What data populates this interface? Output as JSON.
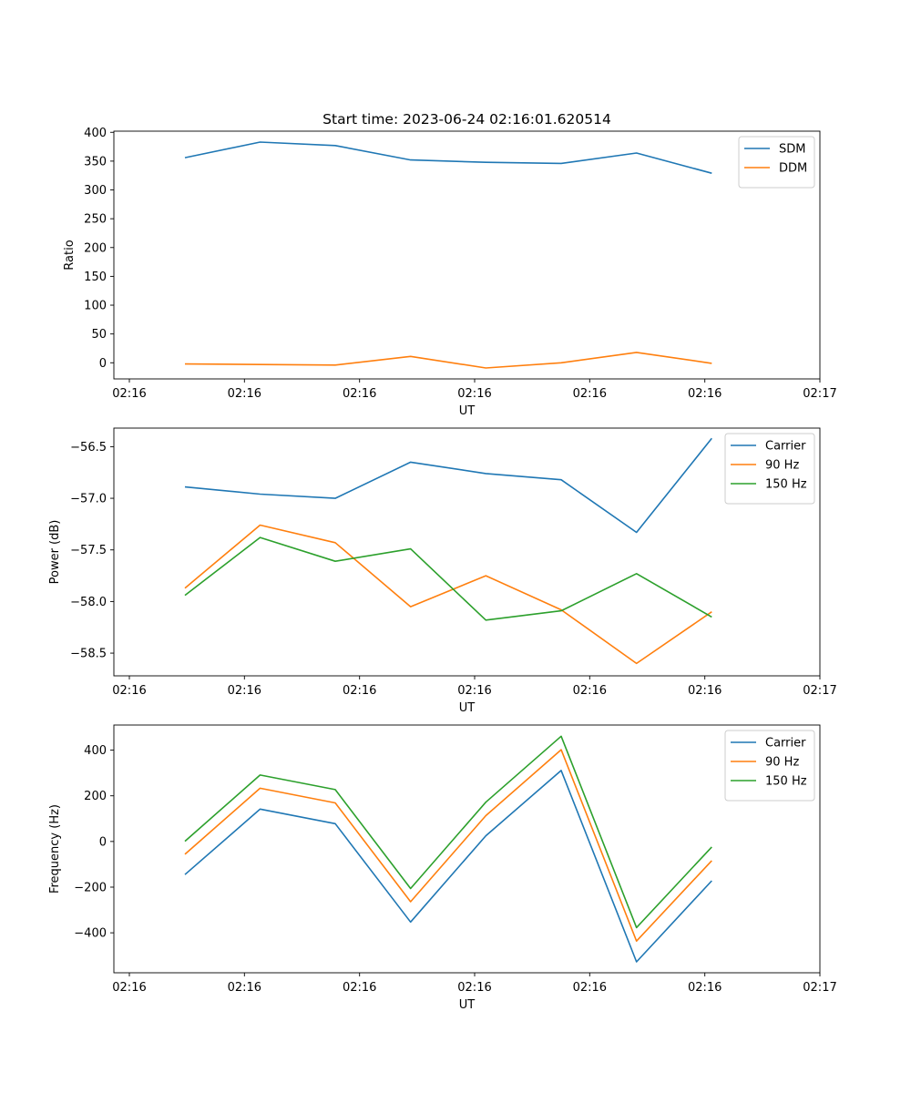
{
  "chart_data": [
    {
      "type": "line",
      "title": "Start time: 2023-06-24 02:16:01.620514",
      "xlabel": "UT",
      "ylabel": "Ratio",
      "x_tick_labels": [
        "02:16",
        "02:16",
        "02:16",
        "02:16",
        "02:16",
        "02:16",
        "02:17"
      ],
      "ylim": [
        -28,
        402
      ],
      "yticks": [
        0,
        50,
        100,
        150,
        200,
        250,
        300,
        350,
        400
      ],
      "legend_position": "top-right",
      "series": [
        {
          "name": "SDM",
          "color": "#1f77b4",
          "values": [
            356,
            383,
            377,
            352,
            348,
            346,
            364,
            329
          ]
        },
        {
          "name": "DDM",
          "color": "#ff7f0e",
          "values": [
            -2,
            -3,
            -4,
            11,
            -9,
            0,
            18,
            -1
          ]
        }
      ]
    },
    {
      "type": "line",
      "title": "",
      "xlabel": "UT",
      "ylabel": "Power (dB)",
      "x_tick_labels": [
        "02:16",
        "02:16",
        "02:16",
        "02:16",
        "02:16",
        "02:16",
        "02:17"
      ],
      "ylim": [
        -58.72,
        -56.32
      ],
      "yticks": [
        -58.5,
        -58.0,
        -57.5,
        -57.0,
        -56.5
      ],
      "ytick_labels": [
        "−58.5",
        "−58.0",
        "−57.5",
        "−57.0",
        "−56.5"
      ],
      "legend_position": "top-right",
      "series": [
        {
          "name": "Carrier",
          "color": "#1f77b4",
          "values": [
            -56.89,
            -56.96,
            -57.0,
            -56.65,
            -56.76,
            -56.82,
            -57.33,
            -56.42
          ]
        },
        {
          "name": "90 Hz",
          "color": "#ff7f0e",
          "values": [
            -57.87,
            -57.26,
            -57.43,
            -58.05,
            -57.75,
            -58.08,
            -58.6,
            -58.1
          ]
        },
        {
          "name": "150 Hz",
          "color": "#2ca02c",
          "values": [
            -57.94,
            -57.38,
            -57.61,
            -57.49,
            -58.18,
            -58.09,
            -57.73,
            -58.15
          ]
        }
      ]
    },
    {
      "type": "line",
      "title": "",
      "xlabel": "UT",
      "ylabel": "Frequency (Hz)",
      "x_tick_labels": [
        "02:16",
        "02:16",
        "02:16",
        "02:16",
        "02:16",
        "02:16",
        "02:17"
      ],
      "ylim": [
        -575,
        510
      ],
      "yticks": [
        -400,
        -200,
        0,
        200,
        400
      ],
      "ytick_labels": [
        "−400",
        "−200",
        "0",
        "200",
        "400"
      ],
      "legend_position": "top-right",
      "series": [
        {
          "name": "Carrier",
          "color": "#1f77b4",
          "values": [
            -145,
            142,
            78,
            -353,
            25,
            311,
            -527,
            -172
          ]
        },
        {
          "name": "90 Hz",
          "color": "#ff7f0e",
          "values": [
            -56,
            233,
            169,
            -264,
            113,
            402,
            -436,
            -84
          ]
        },
        {
          "name": "150 Hz",
          "color": "#2ca02c",
          "values": [
            1,
            291,
            227,
            -206,
            172,
            461,
            -377,
            -24
          ]
        }
      ]
    }
  ]
}
